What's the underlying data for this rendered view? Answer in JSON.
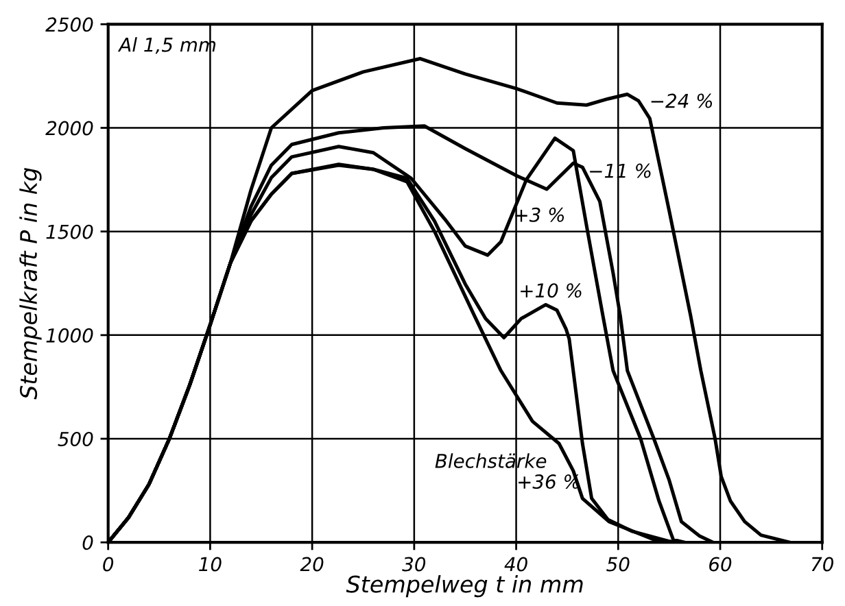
{
  "chart_data": {
    "type": "line",
    "xlabel": "Stempelweg t in mm",
    "ylabel": "Stempelkraft P in kg",
    "xlim": [
      0,
      70
    ],
    "ylim": [
      0,
      2500
    ],
    "xticks": [
      0,
      10,
      20,
      30,
      40,
      50,
      60,
      70
    ],
    "yticks": [
      0,
      500,
      1000,
      1500,
      2000,
      2500
    ],
    "grid": true,
    "legend": false,
    "marker": "none",
    "line_style": "solid",
    "series": [
      {
        "name": "−24 %",
        "color": "#000000",
        "x": [
          0,
          2,
          4,
          6,
          8,
          10,
          12,
          14,
          16,
          20,
          25,
          30.6,
          35,
          40,
          44,
          46.9,
          49,
          50.9,
          52,
          53.1,
          55,
          57.1,
          58.1,
          59.5,
          60.1,
          61,
          62.4,
          64,
          66.8
        ],
        "values": [
          0,
          120,
          280,
          500,
          760,
          1050,
          1350,
          1700,
          2000,
          2180,
          2270,
          2334,
          2260,
          2190,
          2120,
          2110,
          2140,
          2162,
          2130,
          2045,
          1600,
          1094,
          829,
          500,
          318,
          200,
          100,
          35,
          0
        ]
      },
      {
        "name": "−11 %",
        "color": "#000000",
        "x": [
          0,
          2,
          4,
          6,
          8,
          10,
          12,
          14,
          16,
          18,
          22.6,
          27,
          31,
          35,
          40,
          43,
          45.6,
          46.5,
          48.2,
          49.5,
          50.2,
          50.9,
          53.5,
          55,
          56.2,
          58,
          59.3
        ],
        "values": [
          0,
          120,
          280,
          500,
          760,
          1050,
          1350,
          1620,
          1820,
          1920,
          1976,
          2000,
          2009,
          1900,
          1770,
          1704,
          1830,
          1810,
          1645,
          1300,
          1094,
          829,
          500,
          300,
          100,
          30,
          0
        ]
      },
      {
        "name": "+3 %",
        "color": "#000000",
        "x": [
          0,
          2,
          4,
          6,
          8,
          10,
          12,
          14,
          16,
          18,
          22.6,
          26,
          29.7,
          33,
          35,
          37.2,
          38.5,
          41,
          43.8,
          45.6,
          47,
          48.5,
          49.5,
          52.2,
          54,
          55.4,
          56.5
        ],
        "values": [
          0,
          120,
          280,
          500,
          760,
          1050,
          1350,
          1580,
          1760,
          1860,
          1910,
          1880,
          1757,
          1560,
          1430,
          1386,
          1450,
          1750,
          1950,
          1890,
          1500,
          1094,
          829,
          500,
          200,
          13,
          0
        ]
      },
      {
        "name": "+10 %",
        "color": "#000000",
        "x": [
          0,
          2,
          4,
          6,
          8,
          10,
          12,
          14,
          16,
          18,
          22.6,
          26,
          29.3,
          32,
          35,
          37,
          38.8,
          40.5,
          42.9,
          44,
          44.9,
          45.2,
          46.5,
          47.4,
          49,
          51.4,
          55.4
        ],
        "values": [
          0,
          120,
          280,
          500,
          760,
          1050,
          1350,
          1550,
          1680,
          1780,
          1824,
          1800,
          1757,
          1550,
          1247,
          1080,
          988,
          1080,
          1147,
          1120,
          1028,
          981,
          477,
          212,
          110,
          53,
          0
        ]
      },
      {
        "name": "+36 %",
        "color": "#000000",
        "x": [
          0,
          2,
          4,
          6,
          8,
          10,
          12,
          14,
          16,
          18,
          22.6,
          26,
          29.3,
          32,
          35.9,
          38.5,
          41.6,
          44.2,
          45.6,
          46.5,
          49.1,
          53.5,
          56
        ],
        "values": [
          0,
          120,
          280,
          500,
          760,
          1050,
          1350,
          1550,
          1680,
          1780,
          1820,
          1800,
          1740,
          1500,
          1094,
          829,
          584,
          477,
          345,
          212,
          100,
          13,
          0
        ]
      }
    ],
    "annotations": [
      "Al 1,5 mm",
      "Blechstärke"
    ]
  }
}
